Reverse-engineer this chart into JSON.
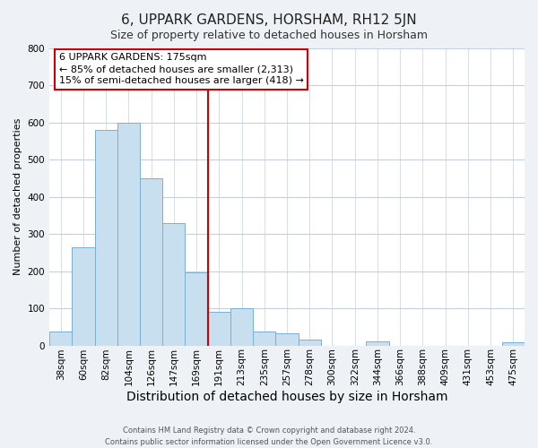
{
  "title": "6, UPPARK GARDENS, HORSHAM, RH12 5JN",
  "subtitle": "Size of property relative to detached houses in Horsham",
  "xlabel": "Distribution of detached houses by size in Horsham",
  "ylabel": "Number of detached properties",
  "bar_color": "#c8dff0",
  "bar_edge_color": "#7aafd4",
  "bin_labels": [
    "38sqm",
    "60sqm",
    "82sqm",
    "104sqm",
    "126sqm",
    "147sqm",
    "169sqm",
    "191sqm",
    "213sqm",
    "235sqm",
    "257sqm",
    "278sqm",
    "300sqm",
    "322sqm",
    "344sqm",
    "366sqm",
    "388sqm",
    "409sqm",
    "431sqm",
    "453sqm",
    "475sqm"
  ],
  "bar_heights": [
    38,
    265,
    580,
    600,
    450,
    330,
    197,
    90,
    100,
    38,
    32,
    15,
    0,
    0,
    10,
    0,
    0,
    0,
    0,
    0,
    8
  ],
  "ylim": [
    0,
    800
  ],
  "yticks": [
    0,
    100,
    200,
    300,
    400,
    500,
    600,
    700,
    800
  ],
  "vline_bin": 6,
  "vline_color": "#cc0000",
  "annotation_line1": "6 UPPARK GARDENS: 175sqm",
  "annotation_line2": "← 85% of detached houses are smaller (2,313)",
  "annotation_line3": "15% of semi-detached houses are larger (418) →",
  "annotation_box_color": "#ffffff",
  "annotation_box_edge": "#cc0000",
  "footer_line1": "Contains HM Land Registry data © Crown copyright and database right 2024.",
  "footer_line2": "Contains public sector information licensed under the Open Government Licence v3.0.",
  "background_color": "#eef2f7",
  "plot_background": "#ffffff",
  "grid_color": "#c5d0dc",
  "title_fontsize": 11,
  "subtitle_fontsize": 9,
  "xlabel_fontsize": 10,
  "ylabel_fontsize": 8,
  "tick_fontsize": 7.5,
  "annotation_fontsize": 8
}
